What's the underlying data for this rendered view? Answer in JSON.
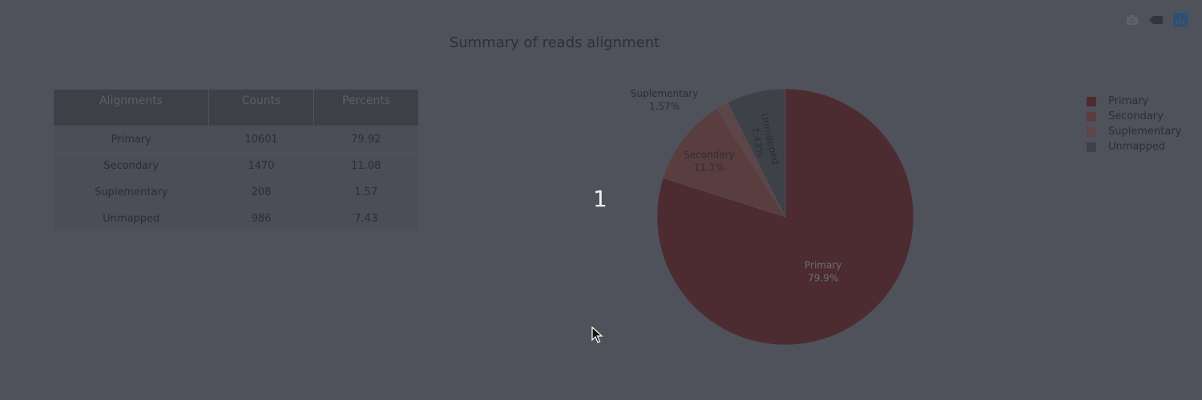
{
  "page": {
    "title": "Summary of reads alignment",
    "overlay_label": "1"
  },
  "modebar": {
    "icons": [
      "camera-icon",
      "tag-icon",
      "plotly-logo-icon"
    ]
  },
  "table": {
    "headers": [
      "Alignments",
      "Counts",
      "Percents"
    ],
    "rows": [
      [
        "Primary",
        "10601",
        "79.92"
      ],
      [
        "Secondary",
        "1470",
        "11.08"
      ],
      [
        "Suplementary",
        "208",
        "1.57"
      ],
      [
        "Unmapped",
        "986",
        "7.43"
      ]
    ]
  },
  "chart_data": {
    "type": "pie",
    "title": "Summary of reads alignment",
    "labels": [
      "Primary",
      "Secondary",
      "Suplementary",
      "Unmapped"
    ],
    "values": [
      10601,
      1470,
      208,
      986
    ],
    "percent_labels": [
      "79.9%",
      "11.1%",
      "1.57%",
      "7.43%"
    ],
    "colors": [
      "#4c2c31",
      "#5a3d3f",
      "#5e4548",
      "#3f4149"
    ],
    "legend_position": "top-right",
    "direction": "clockwise",
    "sort": false
  }
}
